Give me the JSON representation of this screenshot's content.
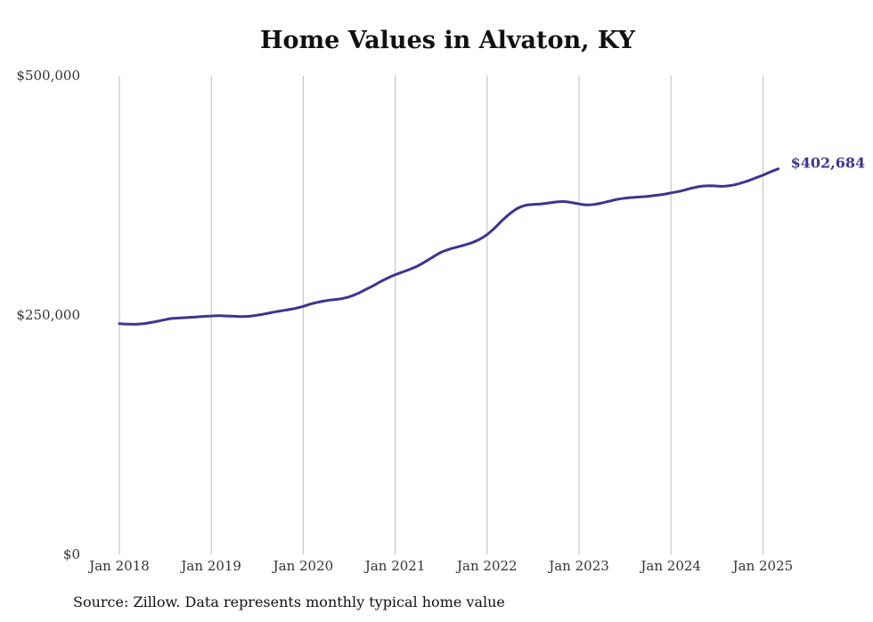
{
  "title": "Home Values in Alvaton, KY",
  "source": "Source: Zillow. Data represents monthly typical home value",
  "chart_data": {
    "type": "line",
    "title": "Home Values in Alvaton, KY",
    "xlabel": "",
    "ylabel": "",
    "ylim": [
      0,
      500000
    ],
    "yticks": [
      {
        "value": 0,
        "label": "$0"
      },
      {
        "value": 250000,
        "label": "$250,000"
      },
      {
        "value": 500000,
        "label": "$500,000"
      }
    ],
    "xticks": [
      "Jan 2018",
      "Jan 2019",
      "Jan 2020",
      "Jan 2021",
      "Jan 2022",
      "Jan 2023",
      "Jan 2024",
      "Jan 2025"
    ],
    "grid": "vertical",
    "line_color": "#3d3591",
    "end_label": "$402,684",
    "series": [
      {
        "values": [
          {
            "x": "2018-01",
            "y": 241000
          },
          {
            "x": "2018-02",
            "y": 240500
          },
          {
            "x": "2018-03",
            "y": 240300
          },
          {
            "x": "2018-04",
            "y": 240800
          },
          {
            "x": "2018-05",
            "y": 242000
          },
          {
            "x": "2018-06",
            "y": 243500
          },
          {
            "x": "2018-07",
            "y": 245200
          },
          {
            "x": "2018-08",
            "y": 246500
          },
          {
            "x": "2018-09",
            "y": 247000
          },
          {
            "x": "2018-10",
            "y": 247500
          },
          {
            "x": "2018-11",
            "y": 248000
          },
          {
            "x": "2018-12",
            "y": 248500
          },
          {
            "x": "2019-01",
            "y": 249000
          },
          {
            "x": "2019-02",
            "y": 249300
          },
          {
            "x": "2019-03",
            "y": 249000
          },
          {
            "x": "2019-04",
            "y": 248700
          },
          {
            "x": "2019-05",
            "y": 248300
          },
          {
            "x": "2019-06",
            "y": 248700
          },
          {
            "x": "2019-07",
            "y": 249800
          },
          {
            "x": "2019-08",
            "y": 251200
          },
          {
            "x": "2019-09",
            "y": 252800
          },
          {
            "x": "2019-10",
            "y": 254200
          },
          {
            "x": "2019-11",
            "y": 255500
          },
          {
            "x": "2019-12",
            "y": 257000
          },
          {
            "x": "2020-01",
            "y": 259000
          },
          {
            "x": "2020-02",
            "y": 261500
          },
          {
            "x": "2020-03",
            "y": 263500
          },
          {
            "x": "2020-04",
            "y": 265000
          },
          {
            "x": "2020-05",
            "y": 266000
          },
          {
            "x": "2020-06",
            "y": 267000
          },
          {
            "x": "2020-07",
            "y": 269000
          },
          {
            "x": "2020-08",
            "y": 272000
          },
          {
            "x": "2020-09",
            "y": 276000
          },
          {
            "x": "2020-10",
            "y": 280000
          },
          {
            "x": "2020-11",
            "y": 284500
          },
          {
            "x": "2020-12",
            "y": 288500
          },
          {
            "x": "2021-01",
            "y": 292000
          },
          {
            "x": "2021-02",
            "y": 295000
          },
          {
            "x": "2021-03",
            "y": 298000
          },
          {
            "x": "2021-04",
            "y": 301500
          },
          {
            "x": "2021-05",
            "y": 306000
          },
          {
            "x": "2021-06",
            "y": 311000
          },
          {
            "x": "2021-07",
            "y": 315500
          },
          {
            "x": "2021-08",
            "y": 318500
          },
          {
            "x": "2021-09",
            "y": 320800
          },
          {
            "x": "2021-10",
            "y": 323000
          },
          {
            "x": "2021-11",
            "y": 325500
          },
          {
            "x": "2021-12",
            "y": 329000
          },
          {
            "x": "2022-01",
            "y": 334000
          },
          {
            "x": "2022-02",
            "y": 341000
          },
          {
            "x": "2022-03",
            "y": 349000
          },
          {
            "x": "2022-04",
            "y": 356000
          },
          {
            "x": "2022-05",
            "y": 361500
          },
          {
            "x": "2022-06",
            "y": 364500
          },
          {
            "x": "2022-07",
            "y": 365500
          },
          {
            "x": "2022-08",
            "y": 366000
          },
          {
            "x": "2022-09",
            "y": 367000
          },
          {
            "x": "2022-10",
            "y": 368000
          },
          {
            "x": "2022-11",
            "y": 368500
          },
          {
            "x": "2022-12",
            "y": 367500
          },
          {
            "x": "2023-01",
            "y": 366000
          },
          {
            "x": "2023-02",
            "y": 365000
          },
          {
            "x": "2023-03",
            "y": 365500
          },
          {
            "x": "2023-04",
            "y": 367000
          },
          {
            "x": "2023-05",
            "y": 369000
          },
          {
            "x": "2023-06",
            "y": 370800
          },
          {
            "x": "2023-07",
            "y": 372000
          },
          {
            "x": "2023-08",
            "y": 372800
          },
          {
            "x": "2023-09",
            "y": 373300
          },
          {
            "x": "2023-10",
            "y": 374000
          },
          {
            "x": "2023-11",
            "y": 375000
          },
          {
            "x": "2023-12",
            "y": 376000
          },
          {
            "x": "2024-01",
            "y": 377500
          },
          {
            "x": "2024-02",
            "y": 379000
          },
          {
            "x": "2024-03",
            "y": 381000
          },
          {
            "x": "2024-04",
            "y": 383000
          },
          {
            "x": "2024-05",
            "y": 384500
          },
          {
            "x": "2024-06",
            "y": 385000
          },
          {
            "x": "2024-07",
            "y": 384700
          },
          {
            "x": "2024-08",
            "y": 384500
          },
          {
            "x": "2024-09",
            "y": 385500
          },
          {
            "x": "2024-10",
            "y": 387500
          },
          {
            "x": "2024-11",
            "y": 390000
          },
          {
            "x": "2024-12",
            "y": 393000
          },
          {
            "x": "2025-01",
            "y": 396000
          },
          {
            "x": "2025-02",
            "y": 399500
          },
          {
            "x": "2025-03",
            "y": 402684
          }
        ]
      }
    ]
  }
}
